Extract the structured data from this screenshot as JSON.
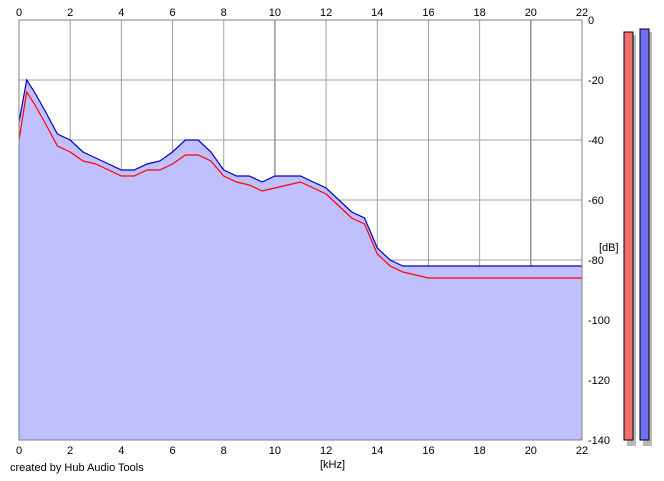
{
  "chart_data": {
    "type": "area",
    "xlabel": "[kHz]",
    "ylabel": "[dB]",
    "xlim": [
      0,
      22
    ],
    "ylim": [
      -140,
      0
    ],
    "x_ticks": [
      "0",
      "2",
      "4",
      "6",
      "8",
      "10",
      "12",
      "14",
      "16",
      "18",
      "20",
      "22"
    ],
    "y_ticks": [
      "0",
      "-20",
      "-40",
      "-60",
      "-80",
      "-100",
      "-120",
      "-140"
    ],
    "grid": true,
    "series": [
      {
        "color": "#ff0000",
        "x": [
          0,
          0.3,
          0.6,
          1.0,
          1.5,
          2.0,
          2.5,
          3.0,
          3.5,
          4.0,
          4.5,
          5.0,
          5.5,
          6.0,
          6.5,
          7.0,
          7.5,
          8.0,
          8.5,
          9.0,
          9.5,
          10.0,
          10.5,
          11.0,
          11.5,
          12.0,
          12.5,
          13.0,
          13.5,
          14.0,
          14.5,
          15.0,
          15.5,
          16.0,
          16.5,
          17.0,
          17.5,
          18.0,
          18.5,
          19.0,
          19.5,
          20.0,
          20.5,
          21.0,
          21.5,
          22.0
        ],
        "values": [
          -40,
          -24,
          -28,
          -34,
          -42,
          -44,
          -47,
          -48,
          -50,
          -52,
          -52,
          -50,
          -50,
          -48,
          -45,
          -45,
          -47,
          -52,
          -54,
          -55,
          -57,
          -56,
          -55,
          -54,
          -56,
          -58,
          -62,
          -66,
          -68,
          -78,
          -82,
          -84,
          -85,
          -86,
          -86,
          -86,
          -86,
          -86,
          -86,
          -86,
          -86,
          -86,
          -86,
          -86,
          -86,
          -86
        ]
      },
      {
        "color": "#0000c0",
        "x": [
          0,
          0.3,
          0.6,
          1.0,
          1.5,
          2.0,
          2.5,
          3.0,
          3.5,
          4.0,
          4.5,
          5.0,
          5.5,
          6.0,
          6.5,
          7.0,
          7.5,
          8.0,
          8.5,
          9.0,
          9.5,
          10.0,
          10.5,
          11.0,
          11.5,
          12.0,
          12.5,
          13.0,
          13.5,
          14.0,
          14.5,
          15.0,
          15.5,
          16.0,
          16.5,
          17.0,
          17.5,
          18.0,
          18.5,
          19.0,
          19.5,
          20.0,
          20.5,
          21.0,
          21.5,
          22.0
        ],
        "values": [
          -34,
          -20,
          -24,
          -30,
          -38,
          -40,
          -44,
          -46,
          -48,
          -50,
          -50,
          -48,
          -47,
          -44,
          -40,
          -40,
          -44,
          -50,
          -52,
          -52,
          -54,
          -52,
          -52,
          -52,
          -54,
          -56,
          -60,
          -64,
          -66,
          -76,
          -80,
          -82,
          -82,
          -82,
          -82,
          -82,
          -82,
          -82,
          -82,
          -82,
          -82,
          -82,
          -82,
          -82,
          -82,
          -82
        ]
      }
    ],
    "fill_color": "#c0c0ff",
    "meters": [
      {
        "color": "#f07070",
        "top_db": -4
      },
      {
        "color": "#7070f0",
        "top_db": -3
      }
    ]
  },
  "credit": "created by Hub Audio Tools"
}
